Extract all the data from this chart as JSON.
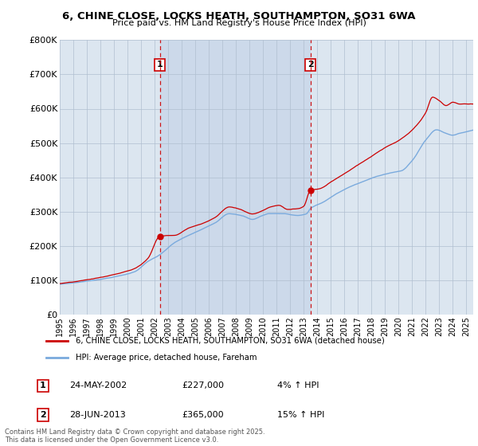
{
  "title": "6, CHINE CLOSE, LOCKS HEATH, SOUTHAMPTON, SO31 6WA",
  "subtitle": "Price paid vs. HM Land Registry's House Price Index (HPI)",
  "ylabel_ticks": [
    "£0",
    "£100K",
    "£200K",
    "£300K",
    "£400K",
    "£500K",
    "£600K",
    "£700K",
    "£800K"
  ],
  "ytick_values": [
    0,
    100000,
    200000,
    300000,
    400000,
    500000,
    600000,
    700000,
    800000
  ],
  "ylim": [
    0,
    800000
  ],
  "xlim_start": 1995.0,
  "xlim_end": 2025.5,
  "xticks": [
    1995,
    1996,
    1997,
    1998,
    1999,
    2000,
    2001,
    2002,
    2003,
    2004,
    2005,
    2006,
    2007,
    2008,
    2009,
    2010,
    2011,
    2012,
    2013,
    2014,
    2015,
    2016,
    2017,
    2018,
    2019,
    2020,
    2021,
    2022,
    2023,
    2024,
    2025
  ],
  "line1_color": "#cc0000",
  "line2_color": "#7aaadd",
  "line1_label": "6, CHINE CLOSE, LOCKS HEATH, SOUTHAMPTON, SO31 6WA (detached house)",
  "line2_label": "HPI: Average price, detached house, Fareham",
  "purchase_dates": [
    2002.39,
    2013.49
  ],
  "purchase_labels": [
    "1",
    "2"
  ],
  "purchase_prices": [
    227000,
    365000
  ],
  "annotation1": [
    "24-MAY-2002",
    "£227,000",
    "4% ↑ HPI"
  ],
  "annotation2": [
    "28-JUN-2013",
    "£365,000",
    "15% ↑ HPI"
  ],
  "footer": "Contains HM Land Registry data © Crown copyright and database right 2025.\nThis data is licensed under the Open Government Licence v3.0.",
  "bg_color": "#ffffff",
  "plot_bg_color": "#dce6f0",
  "shade_color": "#ccd9ea",
  "grid_color": "#b0bfd0",
  "dashed_line_color": "#cc0000",
  "dot_color": "#cc0000"
}
